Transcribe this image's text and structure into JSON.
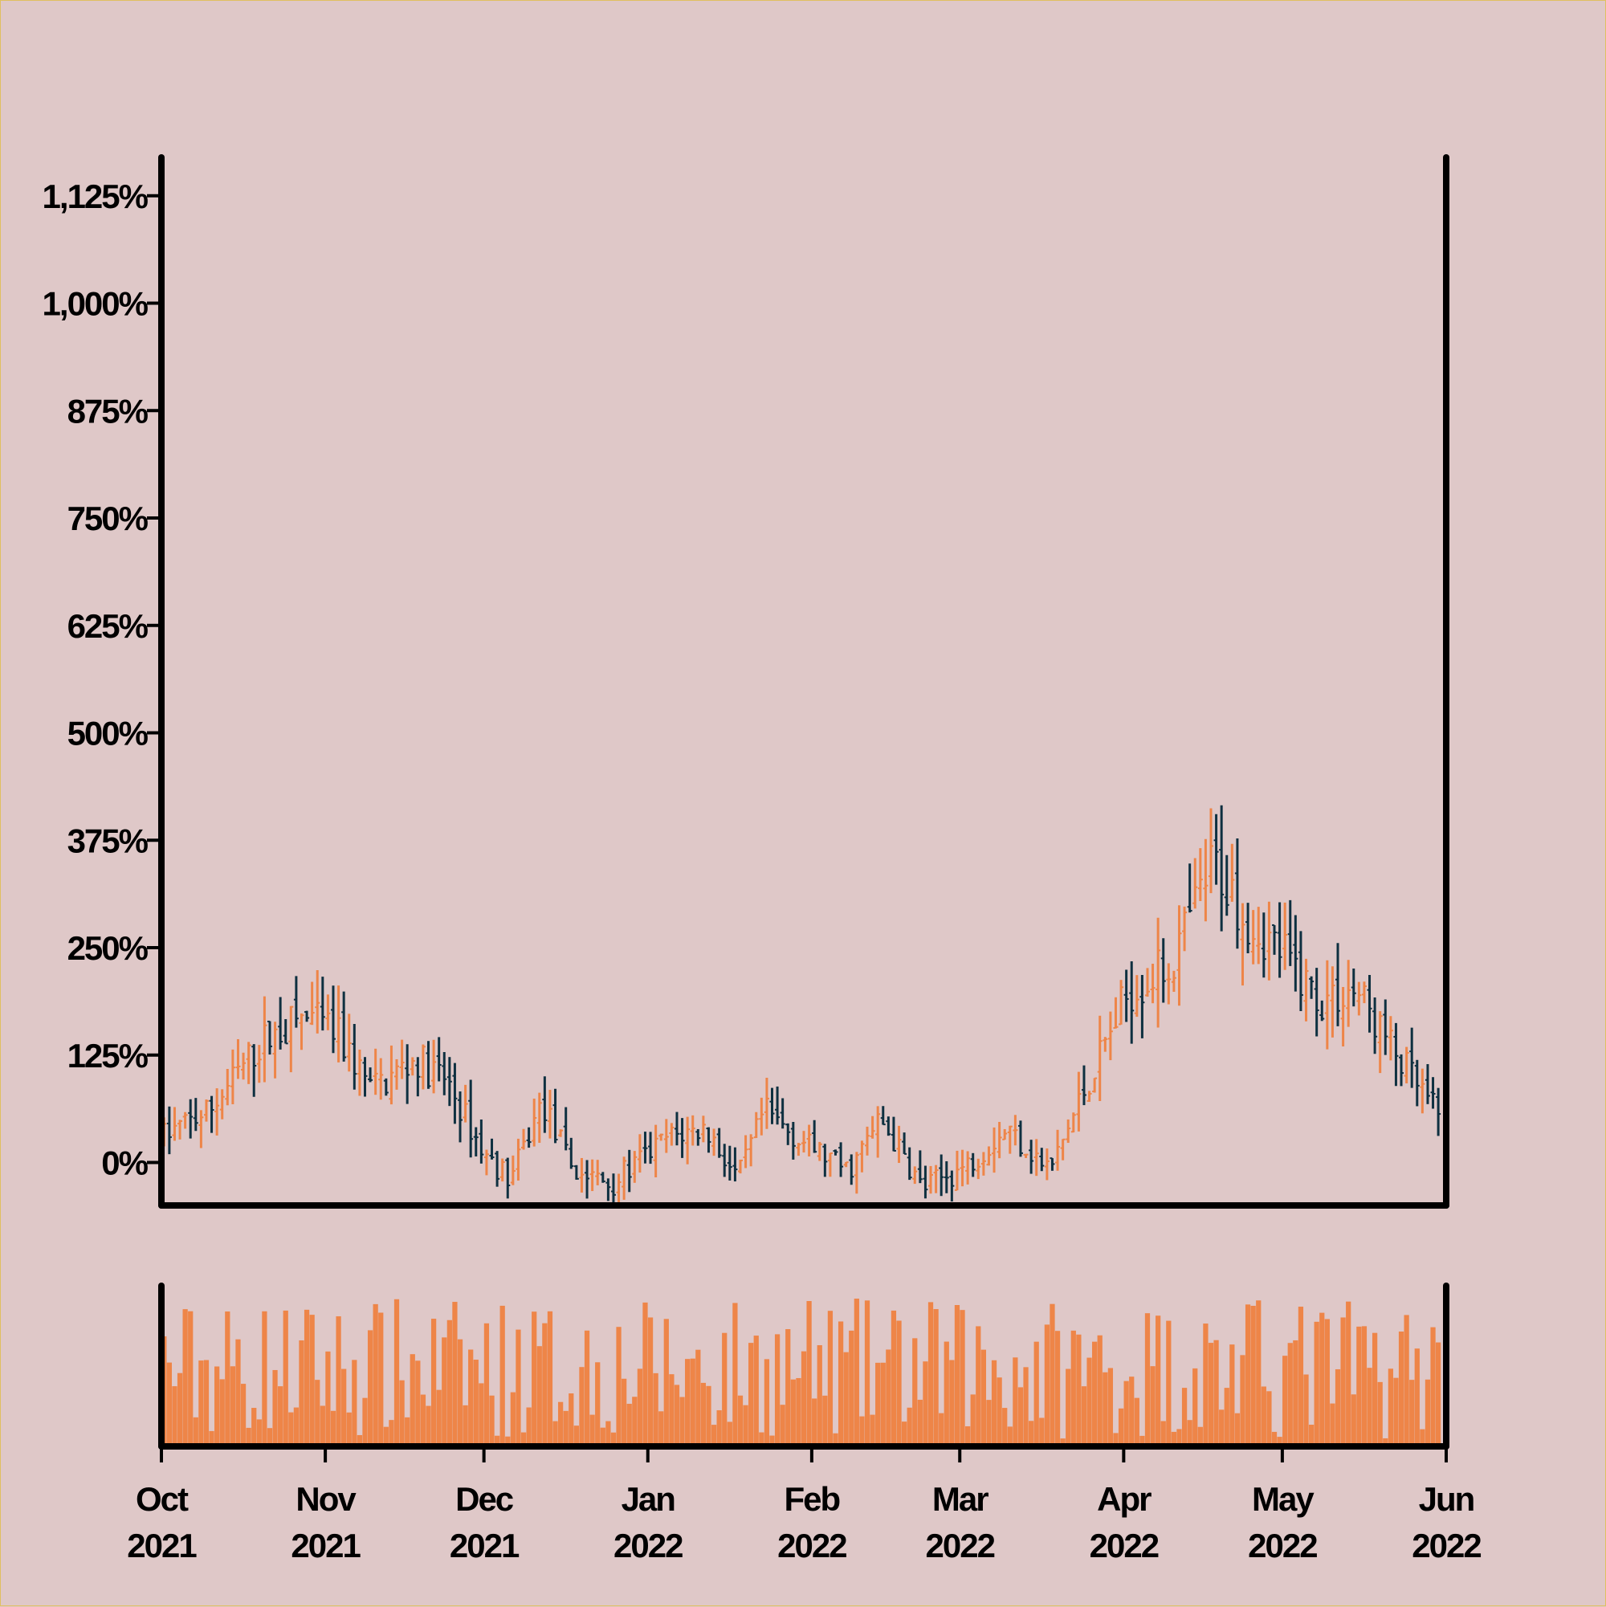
{
  "colors": {
    "background": "#dfc8c8",
    "up": "#ee8548",
    "down": "#0e3040",
    "volume": "#ee8548",
    "axis": "#000000"
  },
  "chart_data": [
    {
      "type": "ohlc",
      "title": "",
      "xlabel": "",
      "ylabel": "",
      "x_range": [
        "2021-10-01",
        "2022-06-01"
      ],
      "ylim": [
        -50,
        1165
      ],
      "y_ticks": [
        0,
        125,
        250,
        375,
        500,
        625,
        750,
        875,
        1000,
        1125
      ],
      "y_tick_labels": [
        "0%",
        "125%",
        "250%",
        "375%",
        "500%",
        "625%",
        "750%",
        "875%",
        "1,000%",
        "1,125%"
      ],
      "x_ticks": [
        {
          "date": "2021-10-01",
          "label": [
            "Oct",
            "2021"
          ]
        },
        {
          "date": "2021-11-01",
          "label": [
            "Nov",
            "2021"
          ]
        },
        {
          "date": "2021-12-01",
          "label": [
            "Dec",
            "2021"
          ]
        },
        {
          "date": "2022-01-01",
          "label": [
            "Jan",
            "2022"
          ]
        },
        {
          "date": "2022-02-01",
          "label": [
            "Feb",
            "2022"
          ]
        },
        {
          "date": "2022-03-01",
          "label": [
            "Mar",
            "2022"
          ]
        },
        {
          "date": "2022-04-01",
          "label": [
            "Apr",
            "2022"
          ]
        },
        {
          "date": "2022-05-01",
          "label": [
            "May",
            "2022"
          ]
        },
        {
          "date": "2022-06-01",
          "label": [
            "Jun",
            "2022"
          ]
        }
      ],
      "trend": [
        {
          "date": "2021-10-01",
          "value": 30
        },
        {
          "date": "2021-10-10",
          "value": 60
        },
        {
          "date": "2021-10-20",
          "value": 140
        },
        {
          "date": "2021-10-28",
          "value": 170
        },
        {
          "date": "2021-11-03",
          "value": 150
        },
        {
          "date": "2021-11-10",
          "value": 85
        },
        {
          "date": "2021-11-18",
          "value": 120
        },
        {
          "date": "2021-11-24",
          "value": 95
        },
        {
          "date": "2021-12-01",
          "value": 10
        },
        {
          "date": "2021-12-06",
          "value": -20
        },
        {
          "date": "2021-12-12",
          "value": 70
        },
        {
          "date": "2021-12-18",
          "value": -10
        },
        {
          "date": "2021-12-25",
          "value": -25
        },
        {
          "date": "2022-01-05",
          "value": 30
        },
        {
          "date": "2022-01-12",
          "value": 40
        },
        {
          "date": "2022-01-18",
          "value": -20
        },
        {
          "date": "2022-01-23",
          "value": 60
        },
        {
          "date": "2022-01-30",
          "value": 25
        },
        {
          "date": "2022-02-08",
          "value": -10
        },
        {
          "date": "2022-02-14",
          "value": 50
        },
        {
          "date": "2022-02-22",
          "value": -30
        },
        {
          "date": "2022-03-02",
          "value": -5
        },
        {
          "date": "2022-03-10",
          "value": 40
        },
        {
          "date": "2022-03-18",
          "value": -10
        },
        {
          "date": "2022-03-25",
          "value": 90
        },
        {
          "date": "2022-04-02",
          "value": 200
        },
        {
          "date": "2022-04-10",
          "value": 230
        },
        {
          "date": "2022-04-18",
          "value": 350
        },
        {
          "date": "2022-04-25",
          "value": 280
        },
        {
          "date": "2022-05-01",
          "value": 245
        },
        {
          "date": "2022-05-08",
          "value": 190
        },
        {
          "date": "2022-05-15",
          "value": 200
        },
        {
          "date": "2022-05-22",
          "value": 130
        },
        {
          "date": "2022-06-01",
          "value": 40
        }
      ]
    },
    {
      "type": "bar",
      "title": "",
      "xlabel": "",
      "ylabel": "",
      "x_range": [
        "2021-10-01",
        "2022-06-01"
      ],
      "ylim": [
        0,
        1
      ],
      "series": [
        {
          "values_description": ""
        }
      ]
    }
  ]
}
